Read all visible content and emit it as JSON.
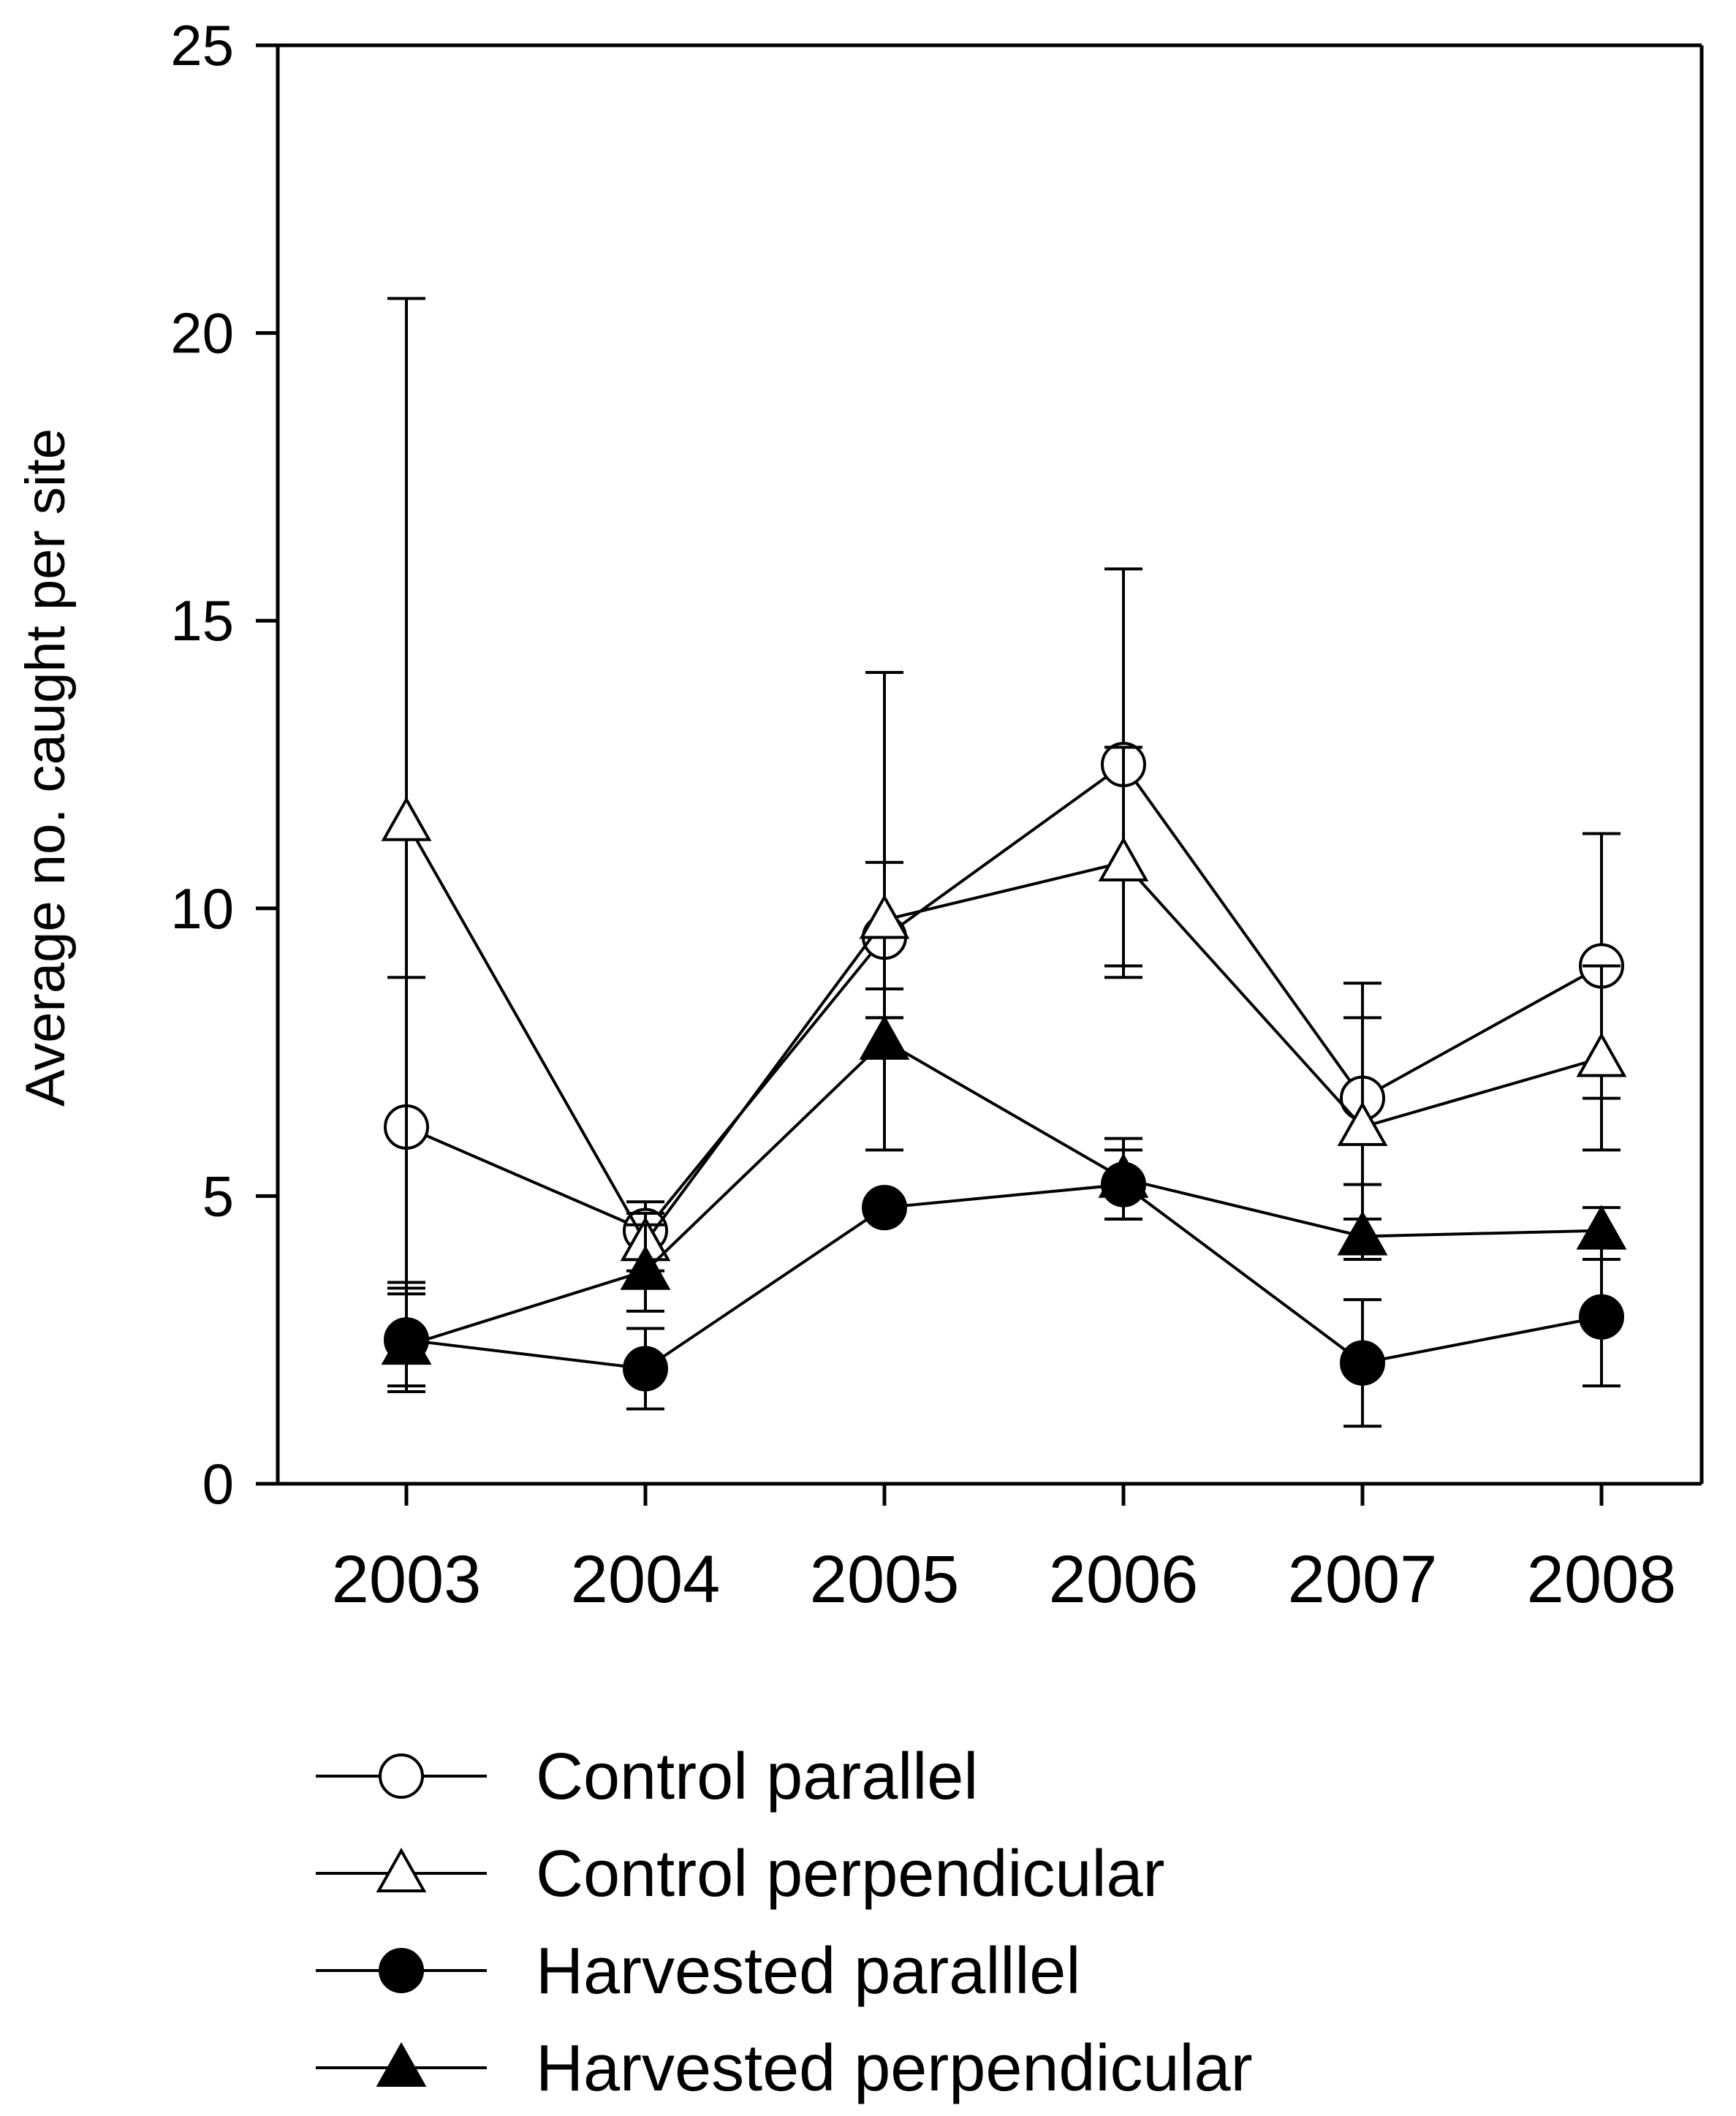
{
  "chart_data": {
    "type": "line",
    "title": "",
    "xlabel": "",
    "ylabel": "Average no. caught per site",
    "categories": [
      "2003",
      "2004",
      "2005",
      "2006",
      "2007",
      "2008"
    ],
    "ylim": [
      0,
      25
    ],
    "yticks": [
      0,
      5,
      10,
      15,
      20,
      25
    ],
    "grid": false,
    "legend_position": "bottom",
    "series": [
      {
        "name": "Control parallel",
        "marker": "circle",
        "filled": false,
        "values": [
          6.2,
          4.4,
          9.5,
          12.5,
          6.7,
          9.0
        ],
        "err_low": [
          2.7,
          0.5,
          1.4,
          3.5,
          1.5,
          2.3
        ],
        "err_high": [
          2.6,
          0.5,
          4.6,
          3.4,
          2.0,
          2.3
        ]
      },
      {
        "name": "Control perpendicular",
        "marker": "triangle",
        "filled": false,
        "values": [
          11.5,
          4.2,
          9.8,
          10.8,
          6.2,
          7.4
        ],
        "err_low": [
          9.0,
          0.5,
          1.2,
          2.0,
          2.3,
          1.6
        ],
        "err_high": [
          9.1,
          0.5,
          1.0,
          2.0,
          1.9,
          1.6
        ]
      },
      {
        "name": "Harvested paralllel",
        "marker": "circle",
        "filled": true,
        "values": [
          2.5,
          2.0,
          4.8,
          5.2,
          2.1,
          2.9
        ],
        "err_low": [
          0.8,
          0.7,
          0.1,
          0.6,
          1.1,
          1.2
        ],
        "err_high": [
          0.8,
          0.7,
          0.1,
          0.6,
          1.1,
          1.2
        ]
      },
      {
        "name": "Harvested perpendicular",
        "marker": "triangle",
        "filled": true,
        "values": [
          2.4,
          3.7,
          7.7,
          5.3,
          4.3,
          4.4
        ],
        "err_low": [
          0.8,
          0.7,
          1.9,
          0.7,
          0.3,
          0.5
        ],
        "err_high": [
          1.0,
          0.8,
          0.4,
          0.7,
          0.3,
          0.4
        ]
      }
    ]
  }
}
